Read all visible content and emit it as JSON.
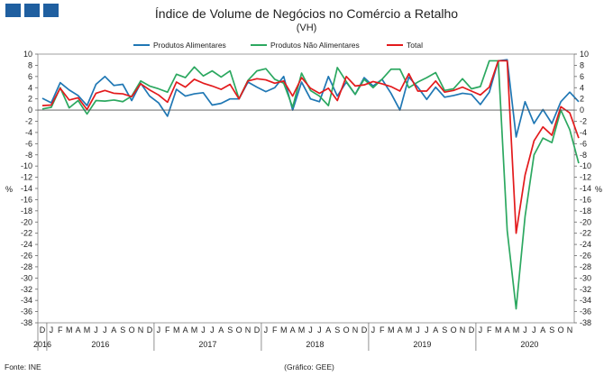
{
  "chart_data": {
    "type": "line",
    "title": "Índice de Volume  de Negócios no Comércio a Retalho",
    "subtitle": "(VH)",
    "ylabel_left": "%",
    "ylabel_right": "%",
    "ylim": [
      -38,
      10
    ],
    "yticks": [
      10,
      8,
      6,
      4,
      2,
      0,
      -2,
      -4,
      -6,
      -8,
      -10,
      -12,
      -14,
      -16,
      -18,
      -20,
      -22,
      -24,
      -26,
      -28,
      -30,
      -32,
      -34,
      -36,
      -38
    ],
    "month_labels": [
      "D",
      "J",
      "F",
      "M",
      "A",
      "M",
      "J",
      "J",
      "A",
      "S",
      "O",
      "N",
      "D",
      "J",
      "F",
      "M",
      "A",
      "M",
      "J",
      "J",
      "A",
      "S",
      "O",
      "N",
      "D",
      "J",
      "F",
      "M",
      "A",
      "M",
      "J",
      "J",
      "A",
      "S",
      "O",
      "N",
      "D",
      "J",
      "F",
      "M",
      "A",
      "M",
      "J",
      "J",
      "A",
      "S",
      "O",
      "N",
      "D",
      "J",
      "F",
      "M",
      "A",
      "M",
      "J",
      "J",
      "A",
      "S",
      "O",
      "N"
    ],
    "years": [
      {
        "label": "2016",
        "index": 0
      },
      {
        "label": "2016",
        "index": 6.5
      },
      {
        "label": "2017",
        "index": 18.5
      },
      {
        "label": "2018",
        "index": 30.5
      },
      {
        "label": "2019",
        "index": 42.5
      },
      {
        "label": "2020",
        "index": 54.5
      }
    ],
    "year_separators": [
      0,
      1,
      13,
      25,
      37,
      49
    ],
    "legend_position": "top-center",
    "series": [
      {
        "name": "Produtos Alimentares",
        "color": "#1f77b4",
        "values": [
          2.1,
          1.3,
          4.9,
          3.6,
          2.6,
          0.8,
          4.6,
          6.0,
          4.4,
          4.6,
          1.7,
          4.8,
          2.5,
          1.3,
          -1.1,
          3.7,
          2.5,
          2.9,
          3.1,
          0.9,
          1.2,
          2.0,
          2.0,
          5.0,
          4.1,
          3.3,
          4.0,
          6.0,
          0.0,
          5.0,
          2.0,
          1.5,
          6.0,
          2.5,
          5.0,
          2.8,
          5.8,
          4.3,
          5.5,
          3.0,
          0.0,
          5.9,
          4.1,
          1.9,
          4.1,
          2.3,
          2.6,
          3.0,
          2.8,
          1.0,
          3.2,
          8.8,
          9.0,
          -4.8,
          1.5,
          -2.4,
          0.1,
          -2.4,
          1.5,
          3.2,
          1.5
        ]
      },
      {
        "name": "Produtos Não Alimentares",
        "color": "#2ca860",
        "values": [
          0.2,
          0.5,
          4.0,
          0.4,
          1.7,
          -0.7,
          1.7,
          1.6,
          1.8,
          1.5,
          2.5,
          5.2,
          4.3,
          3.8,
          3.2,
          6.4,
          5.8,
          7.7,
          6.1,
          7.0,
          5.9,
          7.0,
          2.0,
          5.3,
          7.0,
          7.4,
          5.5,
          4.8,
          0.5,
          6.6,
          3.5,
          2.5,
          0.8,
          7.6,
          5.1,
          2.8,
          5.5,
          4.0,
          5.5,
          7.3,
          7.3,
          4.0,
          5.0,
          5.8,
          6.7,
          3.5,
          3.8,
          5.6,
          3.8,
          4.2,
          8.8,
          8.8,
          -21.5,
          -35.5,
          -19.0,
          -8.0,
          -5.0,
          -5.8,
          0.0,
          -3.5,
          -9.5
        ]
      },
      {
        "name": "Total",
        "color": "#e31a1c",
        "values": [
          0.8,
          0.9,
          3.9,
          1.8,
          2.2,
          0.1,
          3.0,
          3.5,
          3.0,
          2.9,
          2.4,
          4.7,
          3.6,
          2.7,
          1.4,
          5.0,
          4.1,
          5.5,
          4.8,
          4.3,
          3.7,
          4.6,
          2.0,
          5.2,
          5.6,
          5.4,
          4.8,
          5.2,
          2.5,
          5.8,
          3.9,
          3.0,
          3.9,
          1.7,
          6.0,
          4.3,
          4.5,
          5.1,
          4.7,
          4.2,
          3.4,
          6.5,
          3.4,
          3.4,
          5.2,
          3.2,
          3.5,
          4.1,
          3.4,
          2.7,
          4.1,
          8.8,
          8.8,
          -22.0,
          -11.6,
          -5.5,
          -3.0,
          -4.5,
          0.6,
          -0.5,
          -5.0
        ]
      }
    ]
  },
  "footer": {
    "source": "Fonte: INE",
    "credit": "(Gráfico: GEE)"
  }
}
